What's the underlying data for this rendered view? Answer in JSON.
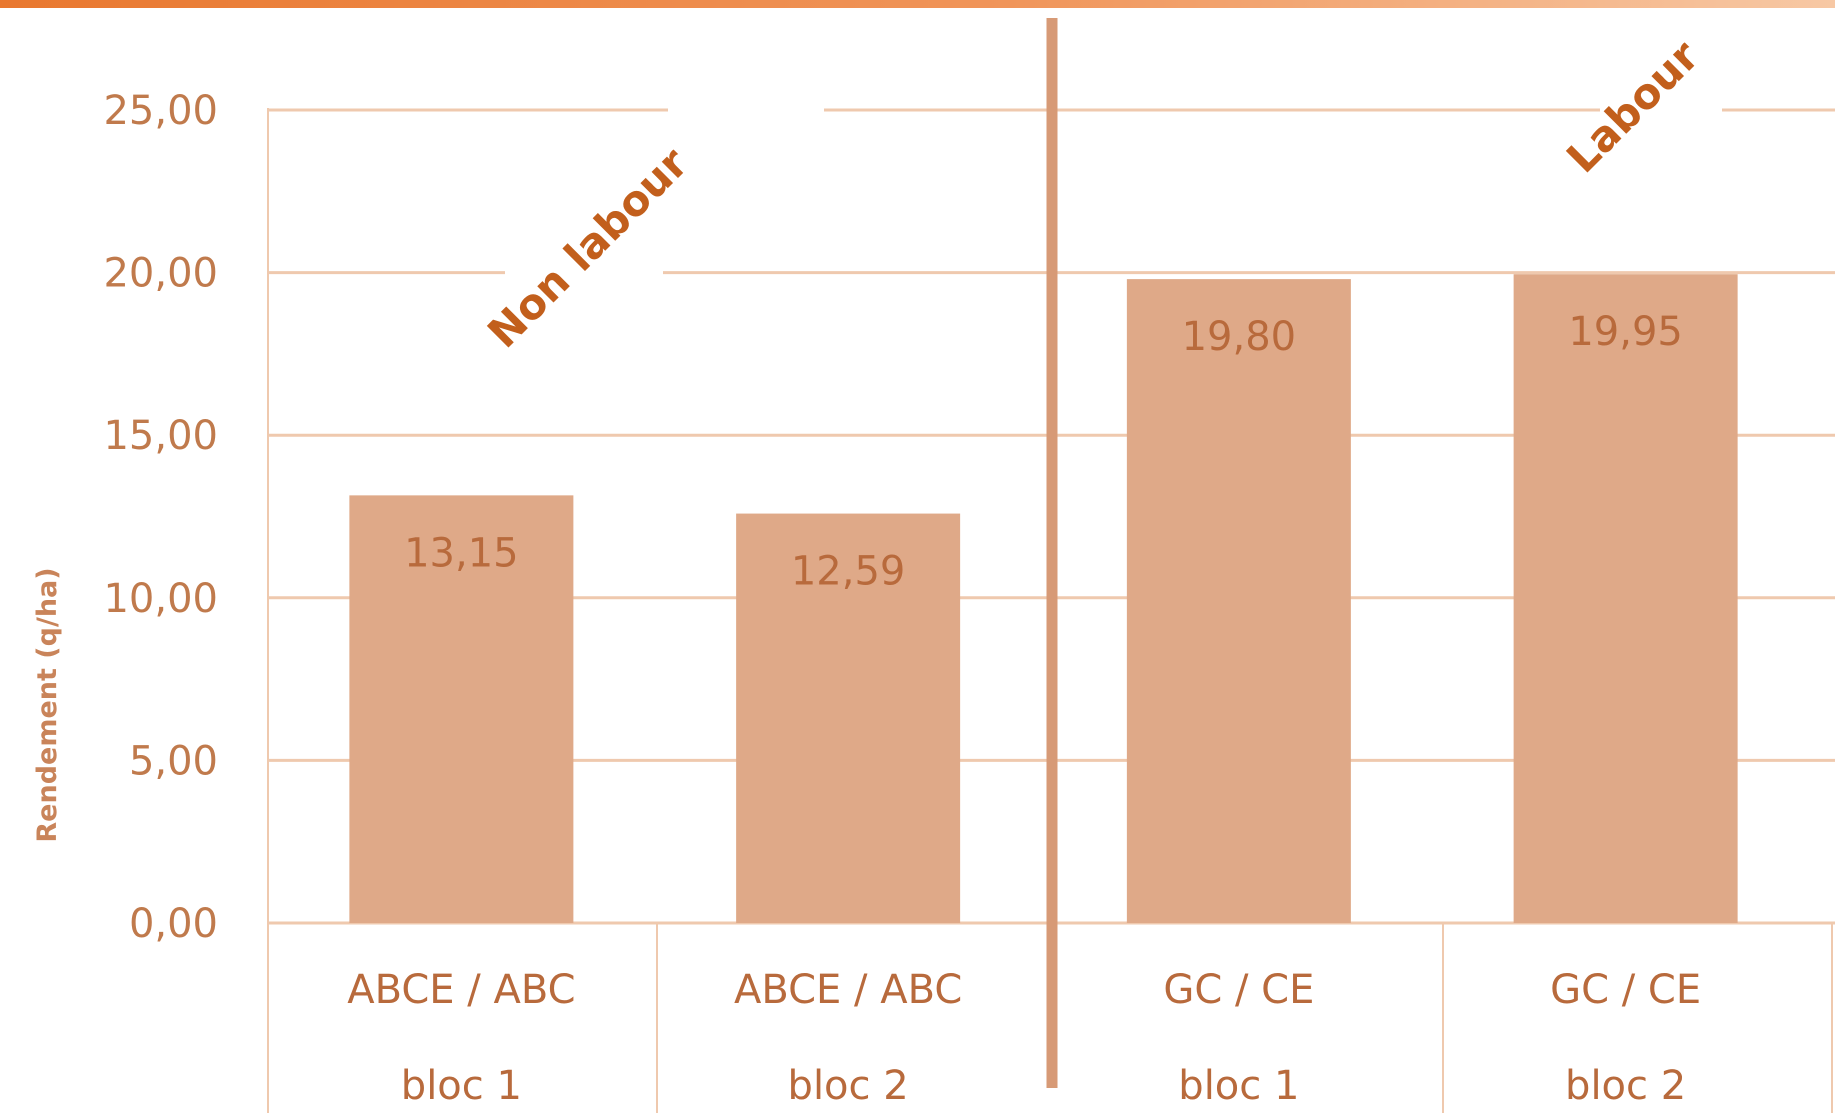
{
  "chart_data": {
    "type": "bar",
    "title": "",
    "ylabel": "Rendement (q/ha)",
    "xlabel": "",
    "ylim": [
      0,
      25
    ],
    "ytick_values": [
      0,
      5,
      10,
      15,
      20,
      25
    ],
    "ytick_labels": [
      "0,00",
      "5,00",
      "10,00",
      "15,00",
      "20,00",
      "25,00"
    ],
    "grid": true,
    "categories": [
      {
        "label": "ABCE / ABC",
        "block": "bloc 1"
      },
      {
        "label": "ABCE / ABC",
        "block": "bloc 2"
      },
      {
        "label": "GC / CE",
        "block": "bloc 1"
      },
      {
        "label": "GC / CE",
        "block": "bloc 2"
      }
    ],
    "values": [
      13.15,
      12.59,
      19.8,
      19.95
    ],
    "value_labels": [
      "13,15",
      "12,59",
      "19,80",
      "19,95"
    ],
    "groups": [
      {
        "label": "Non labour"
      },
      {
        "label": "Labour"
      }
    ],
    "bar_color": "#dfa988",
    "grid_color": "#efc9ae",
    "separator_color": "#d79a76",
    "accent_color": "#e9782f"
  }
}
